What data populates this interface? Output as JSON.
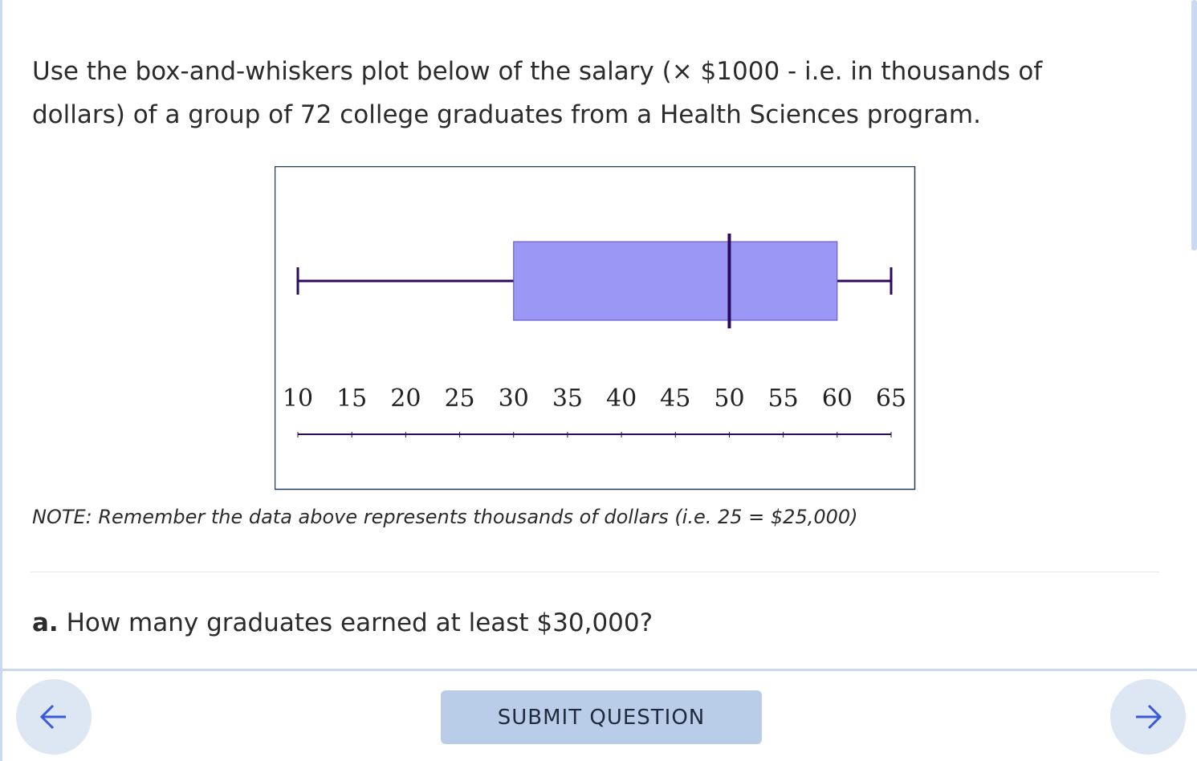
{
  "question": {
    "prompt": "Use the box-and-whiskers plot below of the salary (× $1000 - i.e. in thousands of dollars) of a group of 72 college graduates from a Health Sciences program.",
    "note": "NOTE: Remember the data above represents thousands of dollars (i.e. 25 = $25,000)",
    "part_a": {
      "label": "a.",
      "text": "How many graduates earned at least $30,000?"
    }
  },
  "chart_data": {
    "type": "box",
    "boxes": [
      {
        "min": 10,
        "q1": 30,
        "median": 50,
        "q3": 60,
        "max": 65
      }
    ],
    "xlim": [
      10,
      65
    ],
    "xticks": [
      10,
      15,
      20,
      25,
      30,
      35,
      40,
      45,
      50,
      55,
      60,
      65
    ],
    "box_color": "#9b97f5",
    "line_color": "#2d0a5e"
  },
  "buttons": {
    "submit": "SUBMIT QUESTION"
  }
}
